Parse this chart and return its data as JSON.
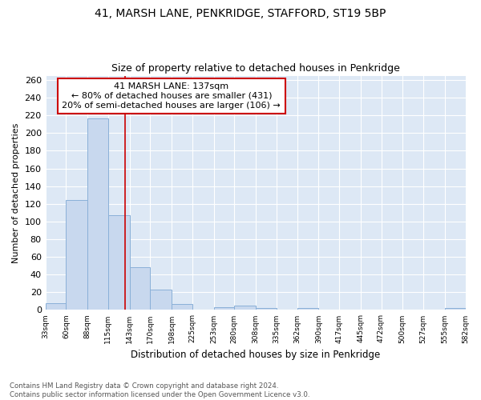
{
  "title": "41, MARSH LANE, PENKRIDGE, STAFFORD, ST19 5BP",
  "subtitle": "Size of property relative to detached houses in Penkridge",
  "xlabel": "Distribution of detached houses by size in Penkridge",
  "ylabel": "Number of detached properties",
  "property_size": 137,
  "property_line_label": "41 MARSH LANE: 137sqm",
  "annotation_line1": "← 80% of detached houses are smaller (431)",
  "annotation_line2": "20% of semi-detached houses are larger (106) →",
  "footer_line1": "Contains HM Land Registry data © Crown copyright and database right 2024.",
  "footer_line2": "Contains public sector information licensed under the Open Government Licence v3.0.",
  "bar_color": "#c8d8ee",
  "bar_edge_color": "#8ab0d8",
  "vline_color": "#cc0000",
  "annotation_box_color": "#ffffff",
  "annotation_box_edge": "#cc0000",
  "background_color": "#dde8f5",
  "grid_color": "#ffffff",
  "bins": [
    33,
    60,
    88,
    115,
    143,
    170,
    198,
    225,
    253,
    280,
    308,
    335,
    362,
    390,
    417,
    445,
    472,
    500,
    527,
    555,
    582
  ],
  "bar_heights": [
    8,
    124,
    217,
    107,
    48,
    23,
    7,
    0,
    3,
    5,
    2,
    0,
    2,
    0,
    0,
    0,
    0,
    0,
    0,
    2
  ],
  "ylim": [
    0,
    265
  ],
  "yticks": [
    0,
    20,
    40,
    60,
    80,
    100,
    120,
    140,
    160,
    180,
    200,
    220,
    240,
    260
  ]
}
